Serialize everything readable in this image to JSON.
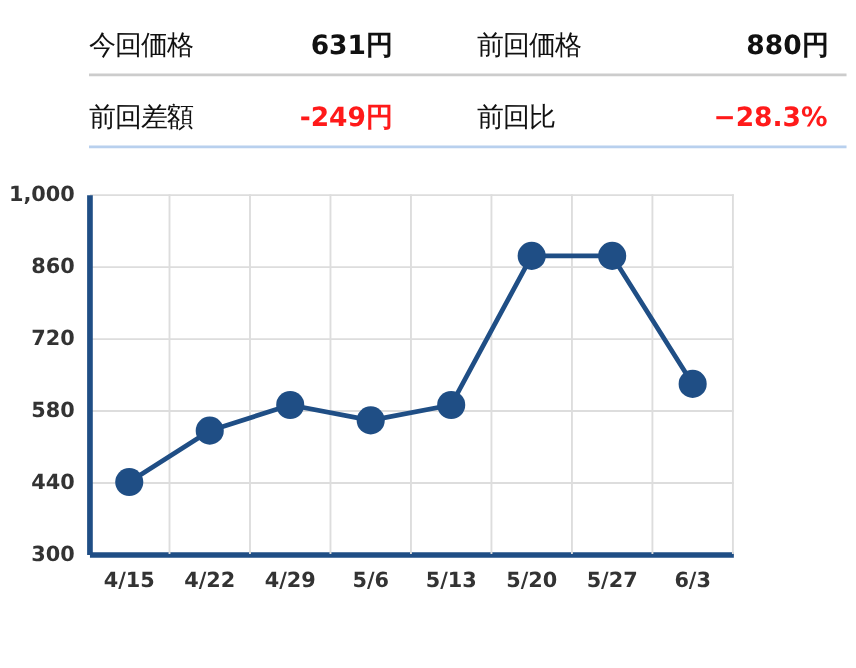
{
  "chart_data": {
    "type": "line",
    "annotations": [
      "今回価格",
      "631円",
      "前回価格",
      "880円",
      "前回差額",
      "-249円",
      "前回比",
      "−28.3%"
    ],
    "categories": [
      "4/15",
      "4/22",
      "4/29",
      "5/6",
      "5/13",
      "5/20",
      "5/27",
      "6/3"
    ],
    "series": [
      {
        "color": "#1f4e85",
        "values": [
          440,
          540,
          590,
          560,
          590,
          880,
          880,
          631
        ]
      }
    ],
    "ylim": [
      300,
      1000
    ],
    "yticks": [
      300,
      440,
      580,
      720,
      860,
      {
        "value": 1000,
        "label": "1,000"
      }
    ],
    "grid": true,
    "marker": "circle",
    "line_style": "solid"
  }
}
